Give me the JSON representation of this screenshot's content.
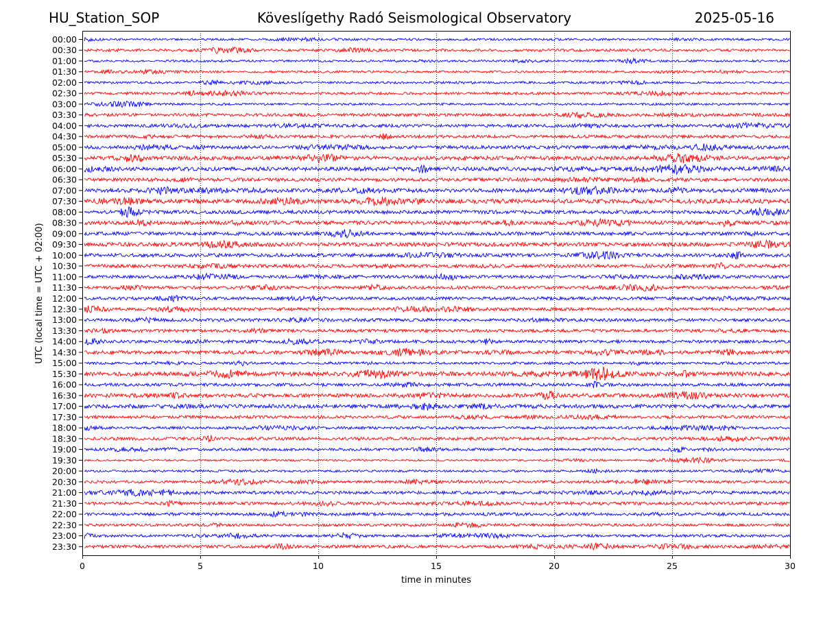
{
  "header": {
    "station": "HU_Station_SOP",
    "observatory": "Köveslígethy Radó Seismological Observatory",
    "date": "2025-05-16"
  },
  "chart_data": {
    "type": "line",
    "title": "Köveslígethy Radó Seismological Observatory",
    "xlabel": "time in minutes",
    "ylabel": "UTC (local time = UTC + 02:00)",
    "xlim": [
      0,
      30
    ],
    "x_ticks": [
      0,
      5,
      10,
      15,
      20,
      25,
      30
    ],
    "grid": "vertical dotted lines at x ticks",
    "trace_colors": [
      "#0000ff",
      "#ff0000"
    ],
    "rows": [
      "00:00",
      "00:30",
      "01:00",
      "01:30",
      "02:00",
      "02:30",
      "03:00",
      "03:30",
      "04:00",
      "04:30",
      "05:00",
      "05:30",
      "06:00",
      "06:30",
      "07:00",
      "07:30",
      "08:00",
      "08:30",
      "09:00",
      "09:30",
      "10:00",
      "10:30",
      "11:00",
      "11:30",
      "12:00",
      "12:30",
      "13:00",
      "13:30",
      "14:00",
      "14:30",
      "15:00",
      "15:30",
      "16:00",
      "16:30",
      "17:00",
      "17:30",
      "18:00",
      "18:30",
      "19:00",
      "19:30",
      "20:00",
      "20:30",
      "21:00",
      "21:30",
      "22:00",
      "22:30",
      "23:00",
      "23:30"
    ],
    "relative_noise_level": [
      0.5,
      0.6,
      0.5,
      0.5,
      0.5,
      0.6,
      0.5,
      0.7,
      0.7,
      0.7,
      0.8,
      0.9,
      0.9,
      0.8,
      0.9,
      1.0,
      0.8,
      0.9,
      0.8,
      0.9,
      0.8,
      0.8,
      0.7,
      0.7,
      0.7,
      0.7,
      0.7,
      0.7,
      0.7,
      0.8,
      0.6,
      1.0,
      0.7,
      0.9,
      0.9,
      0.7,
      0.6,
      0.7,
      0.6,
      0.4,
      0.5,
      0.6,
      0.7,
      0.7,
      0.7,
      0.6,
      0.6,
      0.7
    ]
  }
}
